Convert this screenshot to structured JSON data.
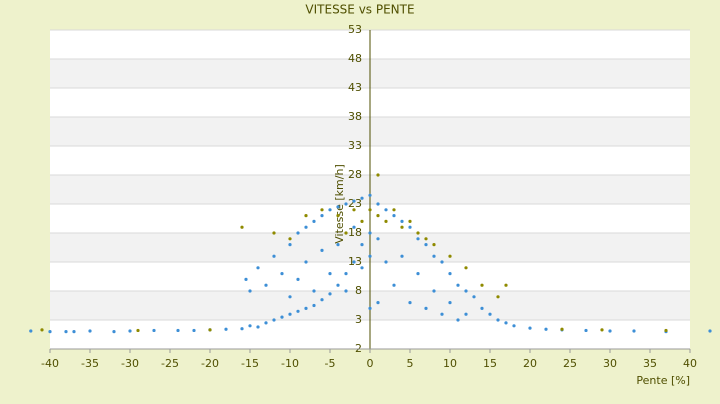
{
  "chart_data": {
    "type": "scatter",
    "title": "VITESSE vs PENTE",
    "x_label": "Pente [%]",
    "y_label": "Vitesse [km/h]",
    "xlim": [
      -40,
      40
    ],
    "ylim": [
      -2,
      53
    ],
    "xticks": [
      -40,
      -35,
      -30,
      -25,
      -20,
      -15,
      -10,
      -5,
      0,
      5,
      10,
      15,
      20,
      25,
      30,
      35,
      40
    ],
    "yticks": [
      -2,
      3,
      8,
      13,
      18,
      23,
      28,
      33,
      38,
      43,
      48,
      53
    ],
    "grid": true,
    "series": [
      {
        "color": "#3d8fd6",
        "x": [
          -42.4,
          -40,
          -38,
          -37,
          -35,
          -32,
          -30,
          -27,
          -24,
          -22,
          -20,
          -18,
          -16,
          -15,
          -14,
          -13,
          -12,
          -11,
          -10,
          -9,
          -8,
          -7,
          -6,
          -5,
          -4,
          -3,
          -2,
          -1,
          0,
          -15.5,
          -15,
          -14,
          -13,
          -12,
          -11,
          -10,
          -10,
          -9,
          -9,
          -8,
          -8,
          -7,
          -7,
          -6,
          -6,
          -5,
          -5,
          -4,
          -4,
          -3,
          -3,
          -2,
          -2,
          -1,
          -1,
          0,
          0,
          0,
          1,
          1,
          1,
          2,
          2,
          3,
          3,
          4,
          4,
          5,
          5,
          6,
          6,
          7,
          7,
          8,
          8,
          9,
          9,
          10,
          10,
          11,
          11,
          12,
          12,
          13,
          14,
          15,
          16,
          17,
          18,
          20,
          22,
          24,
          27,
          30,
          33,
          37,
          42.5
        ],
        "y": [
          1.1,
          1.0,
          1.0,
          1.0,
          1.1,
          1.0,
          1.1,
          1.2,
          1.2,
          1.2,
          1.3,
          1.4,
          1.5,
          2.0,
          1.8,
          2.5,
          3.0,
          3.5,
          4,
          4.5,
          5,
          5.5,
          6.5,
          7.5,
          9,
          11,
          13,
          16,
          18,
          10,
          8,
          12,
          9,
          14,
          11,
          16,
          7,
          18,
          10,
          19,
          13,
          20,
          8,
          21,
          15,
          22,
          11,
          22.5,
          16,
          23,
          8,
          23.5,
          19,
          24,
          12,
          24.5,
          5,
          14,
          23,
          17,
          6,
          22,
          13,
          21,
          9,
          20,
          14,
          19,
          6,
          17,
          11,
          16,
          5,
          14,
          8,
          13,
          4,
          11,
          6,
          9,
          3,
          8,
          4,
          7,
          5,
          4,
          3,
          2.5,
          2,
          1.6,
          1.4,
          1.3,
          1.2,
          1.1,
          1.1,
          1.0,
          1.1
        ]
      },
      {
        "color": "#8f8a00",
        "x": [
          -16,
          -12,
          -10,
          -8,
          -6,
          -4,
          -3,
          -2,
          -1,
          0,
          1,
          1,
          2,
          3,
          4,
          5,
          6,
          7,
          8,
          10,
          12,
          14,
          16,
          17,
          -41,
          -29,
          -20,
          24,
          37,
          29
        ],
        "y": [
          19,
          18,
          17,
          21,
          22,
          21,
          18,
          22,
          20,
          22,
          28,
          21,
          20,
          22,
          19,
          20,
          18,
          17,
          16,
          14,
          12,
          9,
          7,
          9,
          1.3,
          1.2,
          1.3,
          1.4,
          1.2,
          1.3
        ]
      }
    ]
  }
}
